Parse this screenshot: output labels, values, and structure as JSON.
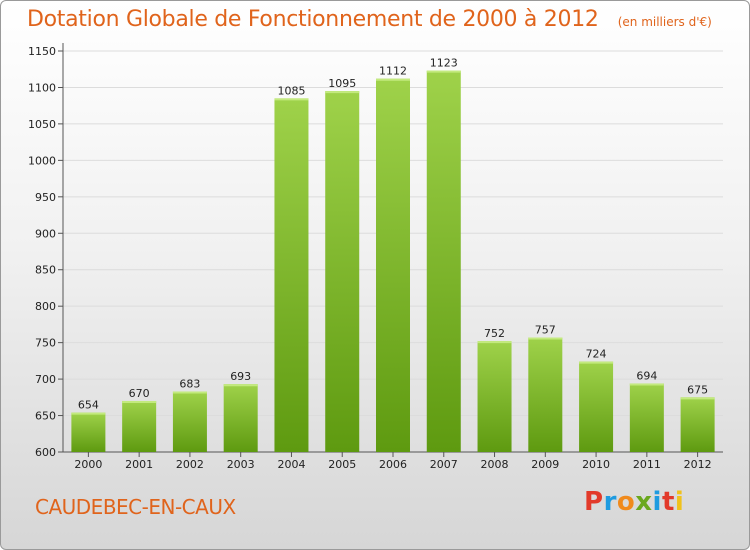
{
  "chart_data": {
    "type": "bar",
    "title": "Dotation Globale de Fonctionnement de 2000 à 2012",
    "subtitle": "(en milliers d'€)",
    "categories": [
      "2000",
      "2001",
      "2002",
      "2003",
      "2004",
      "2005",
      "2006",
      "2007",
      "2008",
      "2009",
      "2010",
      "2011",
      "2012"
    ],
    "values": [
      654,
      670,
      683,
      693,
      1085,
      1095,
      1112,
      1123,
      752,
      757,
      724,
      694,
      675
    ],
    "ylim": [
      600,
      1150
    ],
    "yticks": [
      600,
      650,
      700,
      750,
      800,
      850,
      900,
      950,
      1000,
      1050,
      1100,
      1150
    ],
    "grid": true,
    "bar_color_top": "#9fd24a",
    "bar_color_bottom": "#5e9a10"
  },
  "footer": {
    "place": "CAUDEBEC-EN-CAUX",
    "logo": {
      "p": "P",
      "r": "r",
      "o": "o",
      "x": "x",
      "i1": "i",
      "t": "t",
      "i2": "i"
    }
  }
}
